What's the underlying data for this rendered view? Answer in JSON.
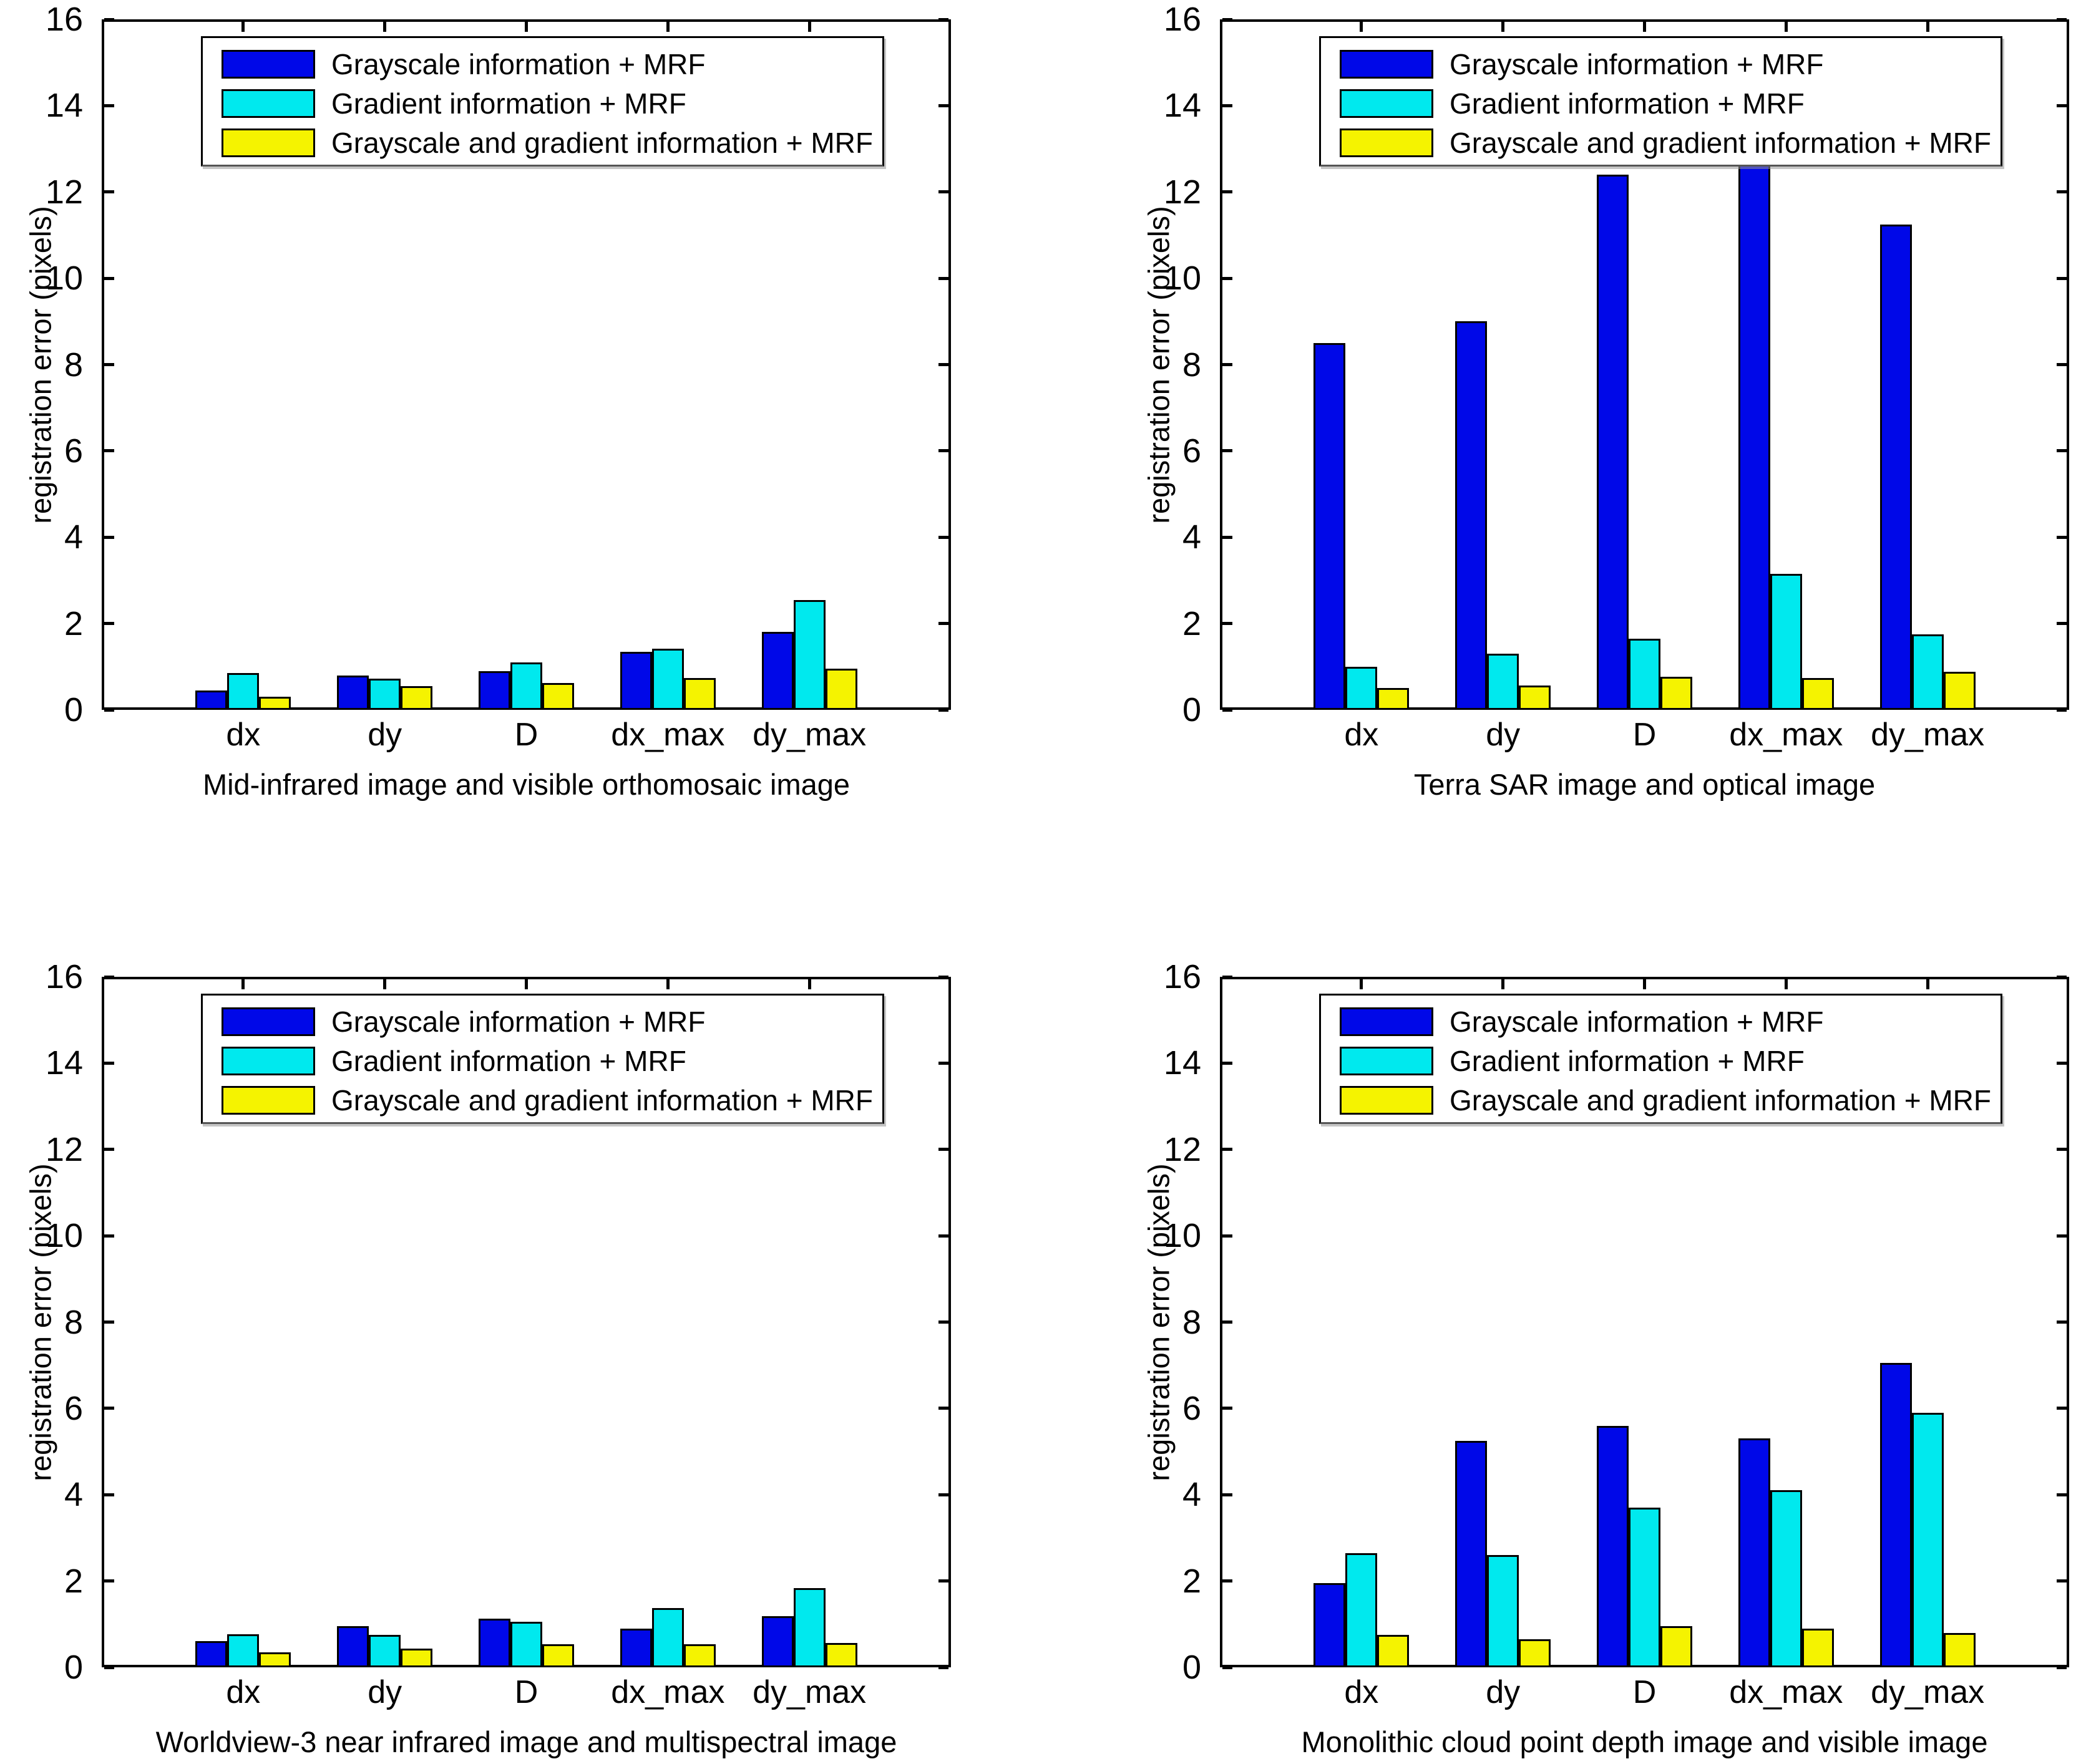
{
  "figure": {
    "background": "#ffffff",
    "axis_color": "#000000",
    "ylabel": "registration error (pixels)",
    "yticks": [
      "0",
      "2",
      "4",
      "6",
      "8",
      "10",
      "12",
      "14",
      "16"
    ],
    "categories": [
      "dx",
      "dy",
      "D",
      "dx_max",
      "dy_max"
    ],
    "legend": {
      "position": "upper-left",
      "entries": [
        {
          "label": "Grayscale information + MRF",
          "color": "#0008E8"
        },
        {
          "label": "Gradient information + MRF",
          "color": "#00E9EE"
        },
        {
          "label": "Grayscale and gradient information + MRF",
          "color": "#F5F300"
        }
      ]
    }
  },
  "chart_data": [
    {
      "type": "bar",
      "title": "Mid-infrared image and visible orthomosaic image",
      "ylabel": "registration error (pixels)",
      "ylim": [
        0,
        16
      ],
      "yticks": [
        0,
        2,
        4,
        6,
        8,
        10,
        12,
        14,
        16
      ],
      "grid": false,
      "legend_position": "upper-left",
      "categories": [
        "dx",
        "dy",
        "D",
        "dx_max",
        "dy_max"
      ],
      "series": [
        {
          "name": "Grayscale information + MRF",
          "color": "#0008E8",
          "values": [
            0.45,
            0.8,
            0.9,
            1.35,
            1.8
          ]
        },
        {
          "name": "Gradient information + MRF",
          "color": "#00E9EE",
          "values": [
            0.85,
            0.72,
            1.1,
            1.42,
            2.55
          ]
        },
        {
          "name": "Grayscale and gradient information + MRF",
          "color": "#F5F300",
          "values": [
            0.3,
            0.55,
            0.62,
            0.73,
            0.95
          ]
        }
      ]
    },
    {
      "type": "bar",
      "title": "Terra SAR image and optical image",
      "ylabel": "registration error (pixels)",
      "ylim": [
        0,
        16
      ],
      "yticks": [
        0,
        2,
        4,
        6,
        8,
        10,
        12,
        14,
        16
      ],
      "grid": false,
      "legend_position": "upper-left",
      "categories": [
        "dx",
        "dy",
        "D",
        "dx_max",
        "dy_max"
      ],
      "series": [
        {
          "name": "Grayscale information + MRF",
          "color": "#0008E8",
          "values": [
            8.5,
            9.0,
            12.4,
            12.9,
            11.25
          ]
        },
        {
          "name": "Gradient information + MRF",
          "color": "#00E9EE",
          "values": [
            1.0,
            1.3,
            1.65,
            3.15,
            1.75
          ]
        },
        {
          "name": "Grayscale and gradient information + MRF",
          "color": "#F5F300",
          "values": [
            0.5,
            0.57,
            0.77,
            0.74,
            0.88
          ]
        }
      ]
    },
    {
      "type": "bar",
      "title": "Worldview-3 near infrared image and multispectral image",
      "ylabel": "registration error (pixels)",
      "ylim": [
        0,
        16
      ],
      "yticks": [
        0,
        2,
        4,
        6,
        8,
        10,
        12,
        14,
        16
      ],
      "grid": false,
      "legend_position": "upper-left",
      "categories": [
        "dx",
        "dy",
        "D",
        "dx_max",
        "dy_max"
      ],
      "series": [
        {
          "name": "Grayscale information + MRF",
          "color": "#0008E8",
          "values": [
            0.61,
            0.95,
            1.13,
            0.9,
            1.19
          ]
        },
        {
          "name": "Gradient information + MRF",
          "color": "#00E9EE",
          "values": [
            0.77,
            0.75,
            1.05,
            1.38,
            1.83
          ]
        },
        {
          "name": "Grayscale and gradient information + MRF",
          "color": "#F5F300",
          "values": [
            0.35,
            0.43,
            0.53,
            0.54,
            0.57
          ]
        }
      ]
    },
    {
      "type": "bar",
      "title": "Monolithic cloud point depth image and visible image",
      "ylabel": "registration error (pixels)",
      "ylim": [
        0,
        16
      ],
      "yticks": [
        0,
        2,
        4,
        6,
        8,
        10,
        12,
        14,
        16
      ],
      "grid": false,
      "legend_position": "upper-left",
      "categories": [
        "dx",
        "dy",
        "D",
        "dx_max",
        "dy_max"
      ],
      "series": [
        {
          "name": "Grayscale information + MRF",
          "color": "#0008E8",
          "values": [
            1.95,
            5.25,
            5.6,
            5.3,
            7.05
          ]
        },
        {
          "name": "Gradient information + MRF",
          "color": "#00E9EE",
          "values": [
            2.65,
            2.6,
            3.7,
            4.1,
            5.9
          ]
        },
        {
          "name": "Grayscale and gradient information + MRF",
          "color": "#F5F300",
          "values": [
            0.75,
            0.65,
            0.95,
            0.9,
            0.8
          ]
        }
      ]
    }
  ]
}
